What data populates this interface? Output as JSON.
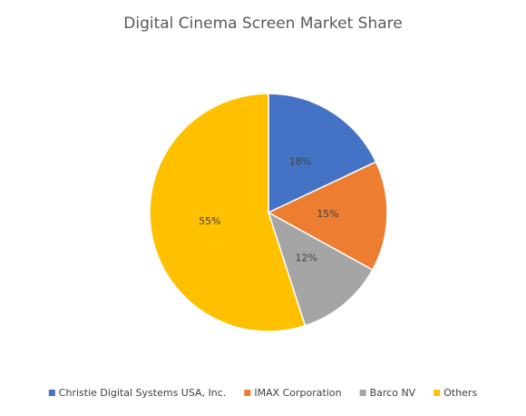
{
  "chart_data": {
    "type": "pie",
    "title": "Digital Cinema Screen Market Share",
    "categories": [
      "Christie Digital Systems USA, Inc.",
      "IMAX Corporation",
      "Barco NV",
      "Others"
    ],
    "values": [
      18,
      15,
      12,
      55
    ],
    "value_labels": [
      "18%",
      "15%",
      "12%",
      "55%"
    ],
    "colors": [
      "#4472c4",
      "#ed7d31",
      "#a5a5a5",
      "#ffc000"
    ],
    "legend": "bottom"
  }
}
